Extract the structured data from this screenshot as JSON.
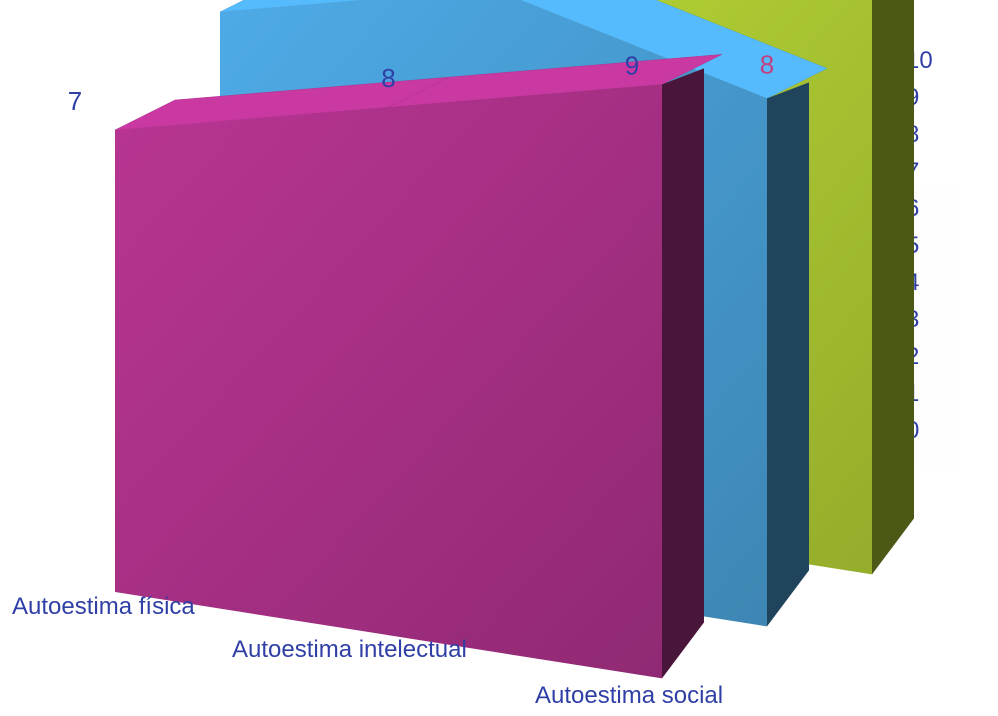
{
  "chart_data": {
    "type": "area",
    "variant": "3d-stacked-ribbons",
    "title": "",
    "xlabel": "",
    "ylabel": "",
    "ylim": [
      0,
      10
    ],
    "y_ticks": [
      "0",
      "1",
      "2",
      "3",
      "4",
      "5",
      "6",
      "7",
      "8",
      "9",
      "10"
    ],
    "grid": true,
    "legend": "none",
    "series": [
      {
        "name": "Autoestima social",
        "values": [
          9,
          9,
          9
        ],
        "color": "#b5d335",
        "label_color": "#2f3fa6"
      },
      {
        "name": "Autoestima intelectual",
        "values": [
          8,
          9,
          8
        ],
        "color": "#4aa3dc",
        "label_color": "#c2407f"
      },
      {
        "name": "Autoestima física",
        "values": [
          7,
          8,
          9
        ],
        "color": "#b0328c",
        "label_color": "#2f3fa6"
      }
    ],
    "colors": {
      "axis_text": "#2f3fa6",
      "grid": "#8a93a8"
    }
  }
}
